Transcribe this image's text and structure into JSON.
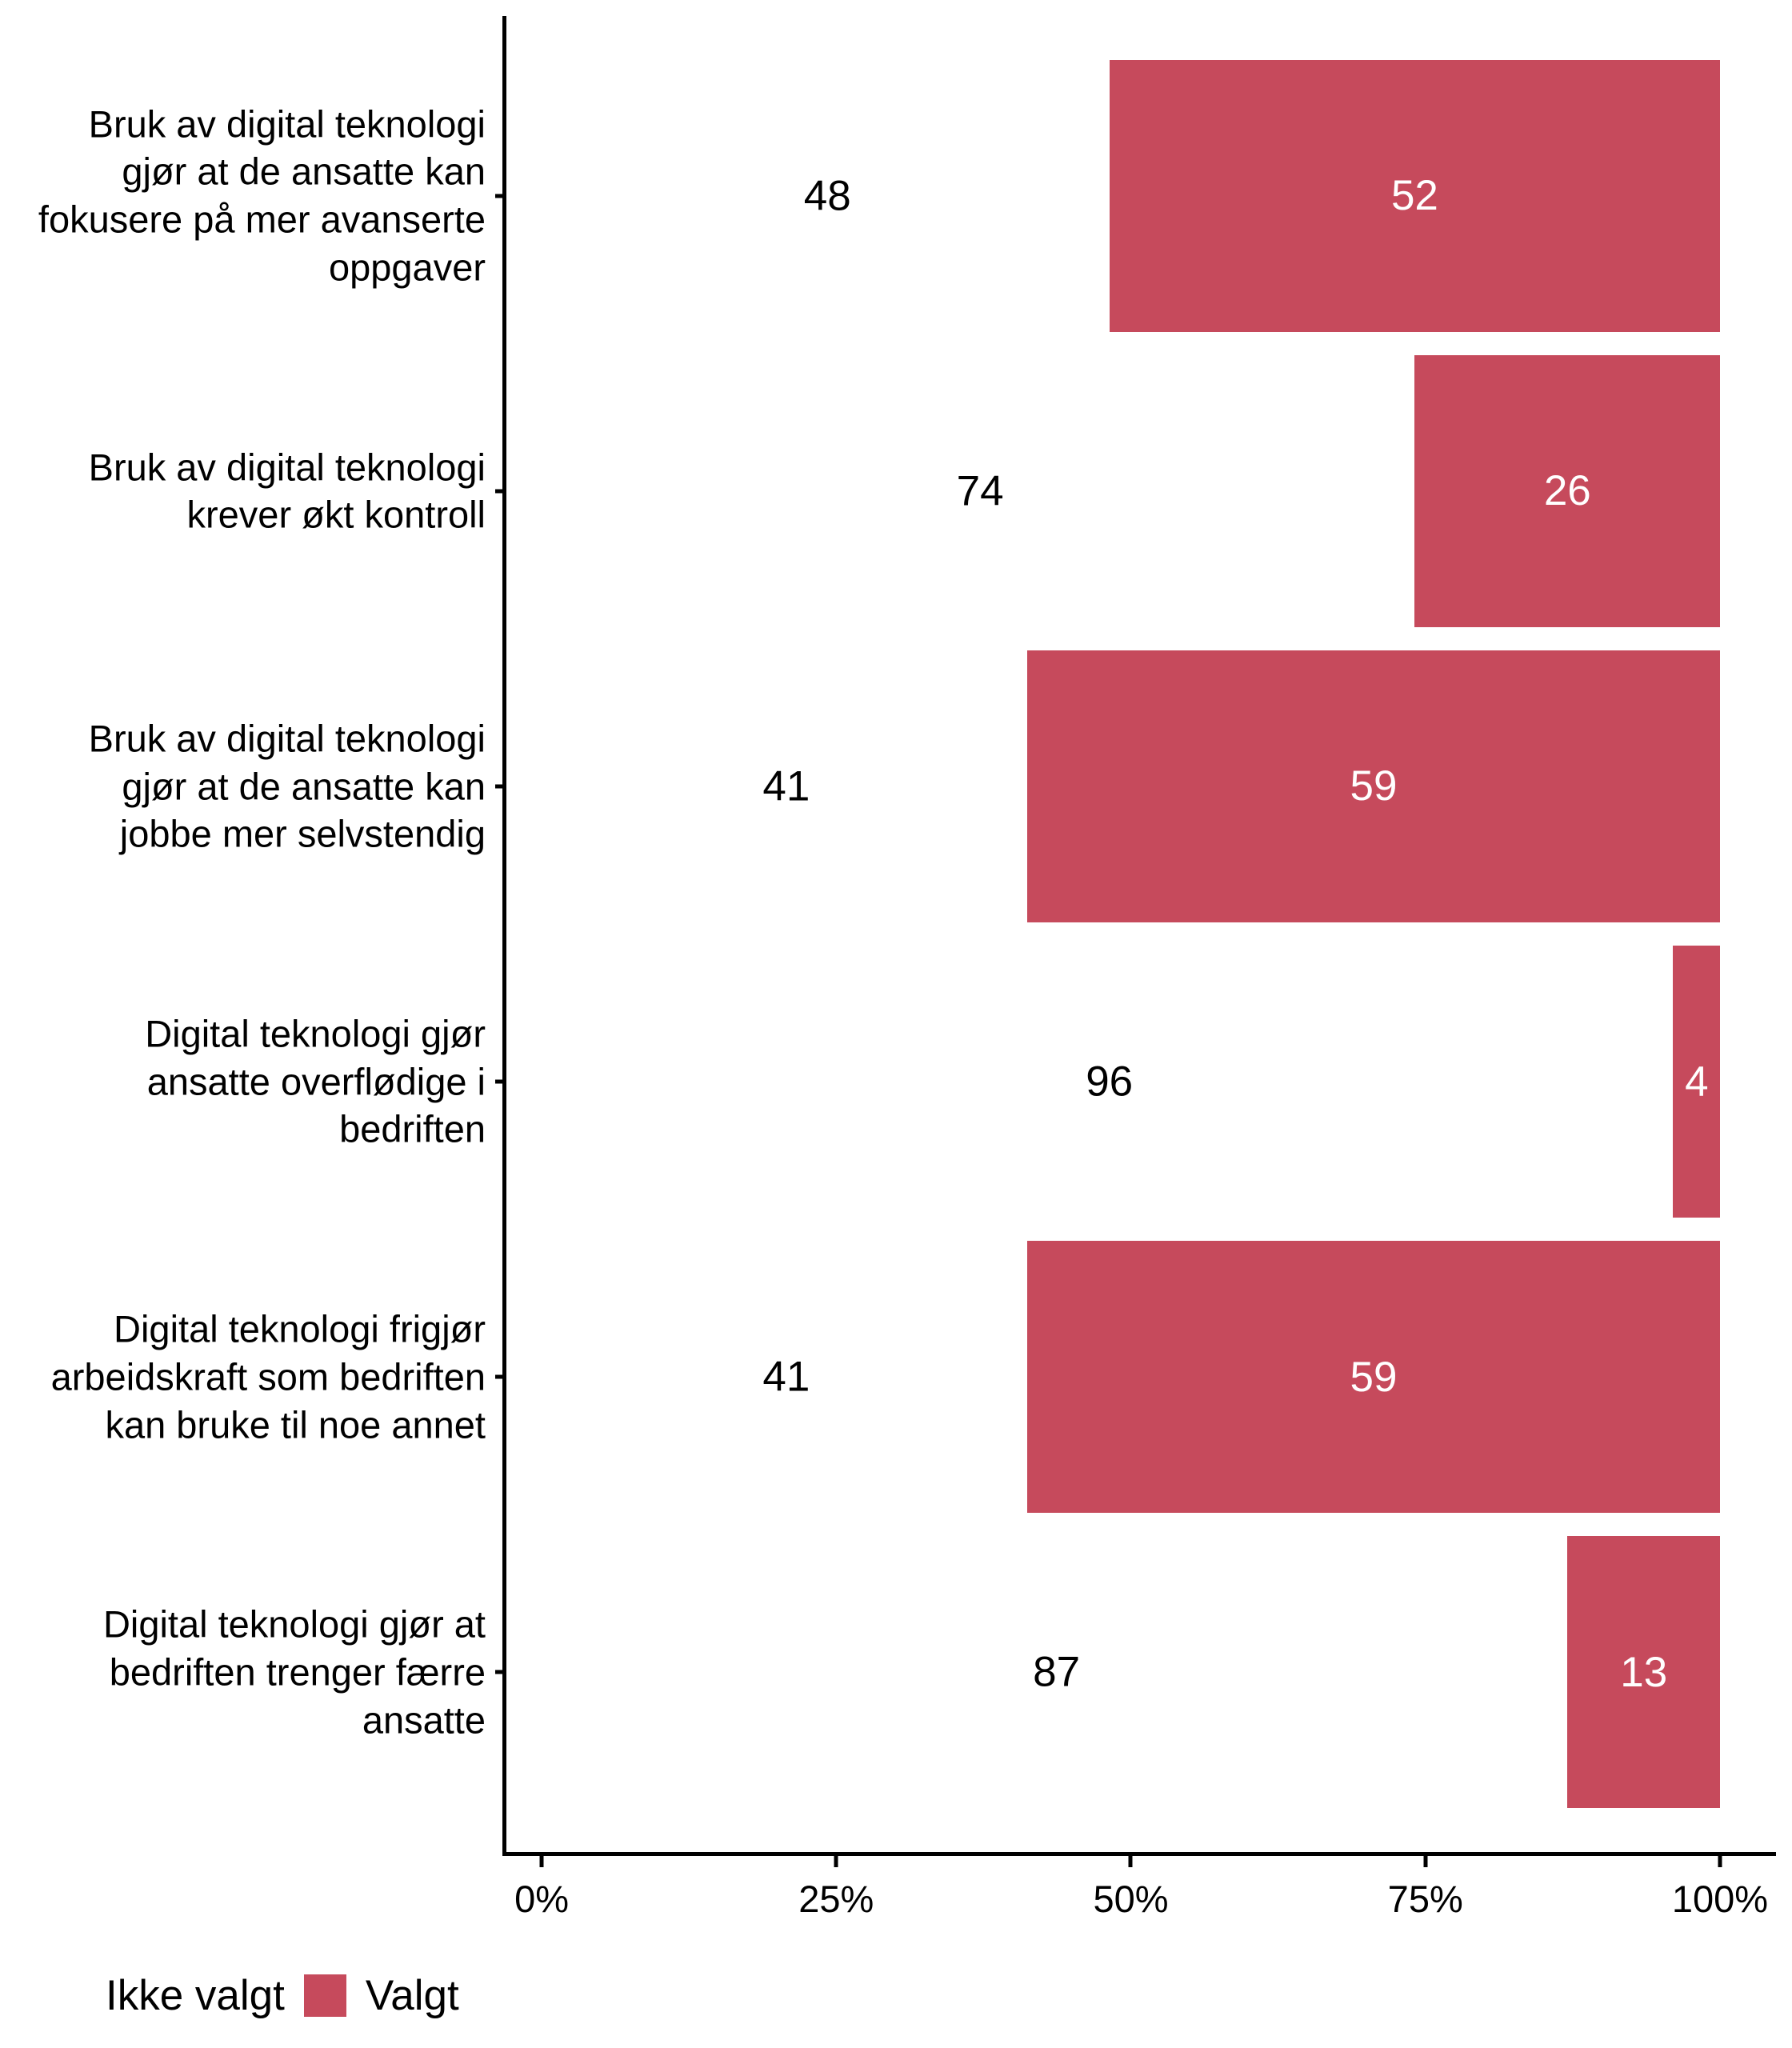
{
  "chart_data": {
    "type": "bar",
    "orientation": "horizontal",
    "stacked": true,
    "unit": "percent",
    "title": "",
    "xlabel": "",
    "ylabel": "",
    "xlim": [
      0,
      100
    ],
    "x_ticks": [
      "0%",
      "25%",
      "50%",
      "75%",
      "100%"
    ],
    "grid": false,
    "legend_position": "bottom-left",
    "categories": [
      "Bruk av digital teknologi gjør at de ansatte kan fokusere på mer avanserte oppgaver",
      "Bruk av digital teknologi krever økt kontroll",
      "Bruk av digital teknologi gjør at de ansatte kan jobbe mer selvstendig",
      "Digital teknologi gjør ansatte overflødige i bedriften",
      "Digital teknologi frigjør arbeidskraft som bedriften kan bruke til noe annet",
      "Digital teknologi gjør at bedriften trenger færre ansatte"
    ],
    "series": [
      {
        "name": "Ikke valgt",
        "color": "#FFFFFF",
        "values": [
          48,
          74,
          41,
          96,
          41,
          87
        ]
      },
      {
        "name": "Valgt",
        "color": "#C64A5C",
        "values": [
          52,
          26,
          59,
          4,
          59,
          13
        ]
      }
    ]
  },
  "legend": {
    "items": [
      {
        "label": "Ikke valgt",
        "color": "#FFFFFF"
      },
      {
        "label": "Valgt",
        "color": "#C64A5C"
      }
    ]
  },
  "colors": {
    "selected_bar": "#C64A5C",
    "not_selected_bar": "#FFFFFF",
    "axis": "#000000",
    "value_label_on_bar": "#FFFFFF",
    "value_label_off_bar": "#000000",
    "background": "#FFFFFF"
  }
}
